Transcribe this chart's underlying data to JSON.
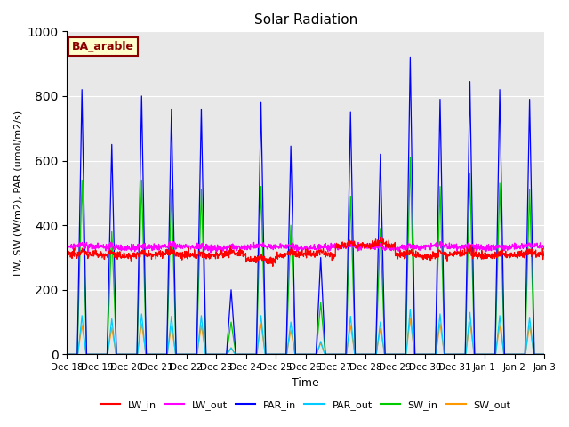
{
  "title": "Solar Radiation",
  "ylabel": "LW, SW (W/m2), PAR (umol/m2/s)",
  "xlabel": "Time",
  "annotation": "BA_arable",
  "ylim": [
    0,
    1000
  ],
  "background_color": "#e8e8e8",
  "colors": {
    "LW_in": "#ff0000",
    "LW_out": "#ff00ff",
    "PAR_in": "#0000ff",
    "PAR_out": "#00ccff",
    "SW_in": "#00cc00",
    "SW_out": "#ff9900"
  },
  "n_days": 16,
  "start_day": 18,
  "par_peaks": [
    820,
    650,
    800,
    760,
    760,
    200,
    780,
    645,
    300,
    750,
    620,
    920,
    790,
    845,
    820,
    790
  ],
  "sw_peaks_in": [
    540,
    380,
    540,
    510,
    510,
    100,
    520,
    400,
    160,
    490,
    390,
    610,
    520,
    560,
    530,
    510
  ],
  "sw_peaks_out": [
    90,
    82,
    95,
    88,
    90,
    20,
    95,
    75,
    35,
    90,
    80,
    110,
    95,
    100,
    90,
    90
  ],
  "par_out_peaks": [
    120,
    110,
    125,
    118,
    120,
    20,
    120,
    100,
    40,
    118,
    100,
    140,
    125,
    130,
    120,
    115
  ],
  "lw_in_base": 308,
  "lw_out_base": 332,
  "pts_per_day": 96
}
